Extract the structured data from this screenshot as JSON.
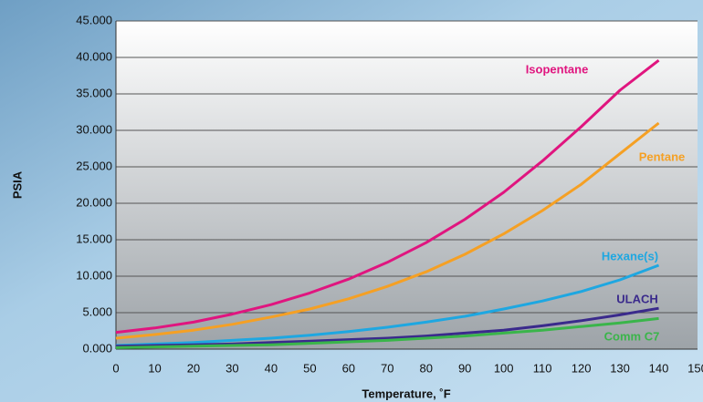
{
  "chart_data": {
    "type": "line",
    "x_label": "Temperature, ˚F",
    "y_label": "PSIA",
    "x": [
      0,
      10,
      20,
      30,
      40,
      50,
      60,
      70,
      80,
      90,
      100,
      110,
      120,
      130,
      140
    ],
    "series": [
      {
        "name": "Isopentane",
        "color": "#e0157f",
        "values": [
          2.3,
          2.9,
          3.7,
          4.8,
          6.1,
          7.7,
          9.6,
          11.9,
          14.6,
          17.8,
          21.5,
          25.8,
          30.5,
          35.5,
          39.6
        ]
      },
      {
        "name": "Pentane",
        "color": "#f5a024",
        "values": [
          1.5,
          2.0,
          2.6,
          3.4,
          4.4,
          5.5,
          6.9,
          8.6,
          10.6,
          13.0,
          15.8,
          19.0,
          22.6,
          26.8,
          31.0
        ]
      },
      {
        "name": "Hexane(s)",
        "color": "#1ea7e1",
        "values": [
          0.5,
          0.7,
          0.9,
          1.2,
          1.5,
          1.9,
          2.4,
          3.0,
          3.7,
          4.5,
          5.5,
          6.6,
          7.9,
          9.5,
          11.5
        ]
      },
      {
        "name": "ULACH",
        "color": "#3a2a8c",
        "values": [
          0.4,
          0.5,
          0.6,
          0.7,
          0.9,
          1.1,
          1.3,
          1.5,
          1.8,
          2.2,
          2.6,
          3.2,
          3.9,
          4.7,
          5.6
        ]
      },
      {
        "name": "Comm C7",
        "color": "#3ab54a",
        "values": [
          0.2,
          0.3,
          0.4,
          0.5,
          0.6,
          0.8,
          1.0,
          1.2,
          1.5,
          1.8,
          2.2,
          2.6,
          3.1,
          3.6,
          4.2
        ]
      }
    ],
    "xlim": [
      0,
      150
    ],
    "xticks": [
      0,
      10,
      20,
      30,
      40,
      50,
      60,
      70,
      80,
      90,
      100,
      110,
      120,
      130,
      140,
      150
    ],
    "ylim": [
      0,
      45
    ],
    "yticks": [
      {
        "value": 0,
        "label": "0.000"
      },
      {
        "value": 5,
        "label": "5.000"
      },
      {
        "value": 10,
        "label": "10.000"
      },
      {
        "value": 15,
        "label": "15.000"
      },
      {
        "value": 20,
        "label": "20.000"
      },
      {
        "value": 25,
        "label": "25.000"
      },
      {
        "value": 30,
        "label": "30.000"
      },
      {
        "value": 35,
        "label": "35.000"
      },
      {
        "value": 40,
        "label": "40.000"
      },
      {
        "value": 45,
        "label": "45.000"
      }
    ],
    "grid": true
  }
}
